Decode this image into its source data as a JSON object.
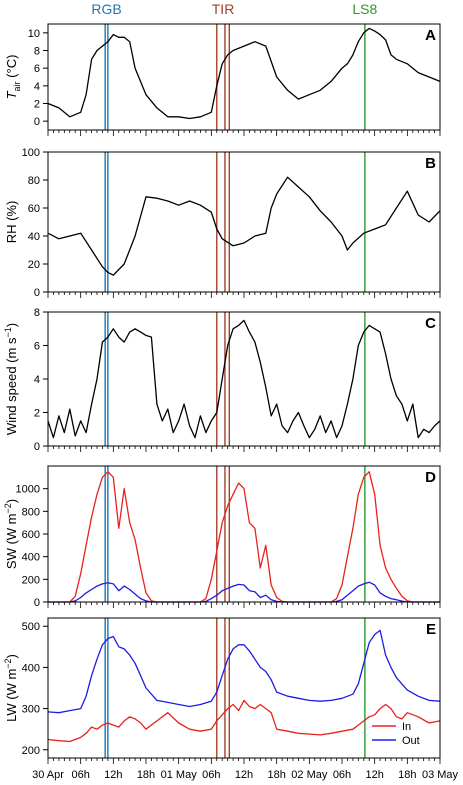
{
  "colors": {
    "rgb": "#1f77b4",
    "tir": "#a0422a",
    "ls8": "#2a9a2a",
    "line": "#000000",
    "in": "#e8221c",
    "out": "#1c1ce8"
  },
  "markers": {
    "rgb": {
      "label": "RGB",
      "x": [
        10.5,
        11.0
      ]
    },
    "tir": {
      "label": "TIR",
      "x": [
        31.0,
        32.5,
        33.3
      ]
    },
    "ls8": {
      "label": "LS8",
      "x": [
        58.2
      ]
    }
  },
  "x_axis": {
    "range": [
      0,
      72
    ],
    "major_ticks": [
      0,
      6,
      12,
      18,
      24,
      30,
      36,
      42,
      48,
      54,
      60,
      66,
      72
    ],
    "tick_labels": [
      "30 Apr",
      "06h",
      "12h",
      "18h",
      "01 May",
      "06h",
      "12h",
      "18h",
      "02 May",
      "06h",
      "12h",
      "18h",
      "03 May"
    ]
  },
  "chart_data": [
    {
      "type": "line",
      "panel": "A",
      "ylabel_main": "T",
      "ylabel_sub": "air",
      "ylabel_unit": " (°C)",
      "ylim": [
        -1,
        11
      ],
      "yticks": [
        0,
        2,
        4,
        6,
        8,
        10
      ],
      "x": [
        0,
        2,
        4,
        6,
        7,
        8,
        9,
        10,
        11,
        12,
        13,
        14,
        15,
        16,
        18,
        20,
        22,
        24,
        26,
        28,
        30,
        31,
        32,
        33,
        34,
        36,
        38,
        40,
        42,
        44,
        46,
        48,
        50,
        52,
        54,
        55,
        56,
        57,
        58,
        59,
        60,
        61,
        62,
        63,
        64,
        66,
        68,
        70,
        72
      ],
      "series": [
        {
          "values": [
            2,
            1.5,
            0.5,
            1,
            3,
            7,
            8,
            8.5,
            9,
            9.8,
            9.5,
            9.5,
            9,
            6,
            3,
            1.5,
            0.5,
            0.5,
            0.3,
            0.5,
            1,
            4,
            6.5,
            7.5,
            8,
            8.5,
            9,
            8.5,
            5,
            3.5,
            2.5,
            3,
            3.5,
            4.5,
            6,
            6.5,
            7.5,
            9,
            10,
            10.5,
            10.2,
            9.8,
            9.2,
            7.5,
            7,
            6.5,
            5.5,
            5,
            4.5
          ]
        }
      ]
    },
    {
      "type": "line",
      "panel": "B",
      "ylabel_main": "RH (%)",
      "ylim": [
        0,
        100
      ],
      "yticks": [
        0,
        20,
        40,
        60,
        80,
        100
      ],
      "x": [
        0,
        2,
        4,
        6,
        8,
        10,
        11,
        12,
        14,
        16,
        18,
        20,
        22,
        24,
        26,
        28,
        30,
        31,
        32,
        34,
        36,
        38,
        40,
        41,
        42,
        44,
        46,
        48,
        50,
        52,
        54,
        55,
        56,
        58,
        60,
        62,
        64,
        66,
        68,
        70,
        72
      ],
      "series": [
        {
          "values": [
            42,
            38,
            40,
            42,
            30,
            18,
            14,
            12,
            20,
            40,
            68,
            67,
            65,
            62,
            65,
            62,
            57,
            45,
            38,
            33,
            35,
            40,
            42,
            60,
            70,
            82,
            75,
            68,
            58,
            50,
            40,
            30,
            35,
            42,
            45,
            48,
            60,
            72,
            55,
            50,
            58
          ]
        }
      ]
    },
    {
      "type": "line",
      "panel": "C",
      "ylabel_main": "Wind speed (m s",
      "ylabel_sup": "−1",
      "ylabel_end": ")",
      "ylim": [
        0,
        8
      ],
      "yticks": [
        0,
        2,
        4,
        6,
        8
      ],
      "x": [
        0,
        1,
        2,
        3,
        4,
        5,
        6,
        7,
        8,
        9,
        10,
        11,
        12,
        13,
        14,
        15,
        16,
        17,
        18,
        19,
        20,
        21,
        22,
        23,
        24,
        25,
        26,
        27,
        28,
        29,
        30,
        31,
        32,
        33,
        34,
        35,
        36,
        37,
        38,
        39,
        40,
        41,
        42,
        43,
        44,
        45,
        46,
        47,
        48,
        49,
        50,
        51,
        52,
        53,
        54,
        55,
        56,
        57,
        58,
        59,
        60,
        61,
        62,
        63,
        64,
        65,
        66,
        67,
        68,
        69,
        70,
        71,
        72
      ],
      "series": [
        {
          "values": [
            1.5,
            0.5,
            1.8,
            0.8,
            2.2,
            0.6,
            1.5,
            0.8,
            2.5,
            4,
            6.2,
            6.5,
            7,
            6.5,
            6.2,
            6.8,
            7,
            6.8,
            6.6,
            6.5,
            2.5,
            1.5,
            2.2,
            0.8,
            1.5,
            2.5,
            1.2,
            0.5,
            1.8,
            0.8,
            1.5,
            2,
            4,
            6,
            7,
            7.2,
            7.5,
            6.8,
            6.2,
            5,
            3.5,
            1.8,
            2.5,
            1.2,
            0.8,
            1.5,
            2,
            1.2,
            0.5,
            1,
            1.8,
            0.8,
            1.5,
            0.5,
            1.2,
            2.5,
            4,
            6,
            6.8,
            7.2,
            7,
            6.8,
            5.5,
            4,
            3,
            2.5,
            1.5,
            2.5,
            0.5,
            1,
            0.8,
            1.2,
            1.5
          ]
        }
      ]
    },
    {
      "type": "line",
      "panel": "D",
      "ylabel_main": "SW (W m",
      "ylabel_sup": "−2",
      "ylabel_end": ")",
      "ylim": [
        0,
        1200
      ],
      "yticks": [
        0,
        200,
        400,
        600,
        800,
        1000
      ],
      "legend": "none",
      "x": [
        0,
        4,
        5,
        6,
        7,
        8,
        9,
        10,
        11,
        12,
        13,
        14,
        15,
        16,
        17,
        18,
        19,
        20,
        24,
        28,
        29,
        30,
        31,
        32,
        33,
        34,
        35,
        36,
        37,
        38,
        39,
        40,
        41,
        42,
        43,
        44,
        48,
        52,
        53,
        54,
        55,
        56,
        57,
        58,
        59,
        60,
        61,
        62,
        63,
        64,
        65,
        66,
        67,
        72
      ],
      "series": [
        {
          "name": "In",
          "values": [
            0,
            0,
            50,
            250,
            500,
            750,
            950,
            1100,
            1150,
            1100,
            650,
            1000,
            700,
            550,
            300,
            80,
            10,
            0,
            0,
            0,
            30,
            200,
            450,
            700,
            850,
            950,
            1050,
            1000,
            700,
            650,
            300,
            500,
            150,
            40,
            5,
            0,
            0,
            0,
            30,
            150,
            400,
            650,
            950,
            1100,
            1150,
            950,
            500,
            300,
            200,
            120,
            50,
            10,
            0,
            0
          ]
        },
        {
          "name": "Out",
          "values": [
            0,
            0,
            10,
            40,
            80,
            110,
            140,
            160,
            170,
            160,
            100,
            140,
            110,
            70,
            30,
            10,
            0,
            0,
            0,
            0,
            5,
            30,
            60,
            100,
            120,
            140,
            155,
            150,
            100,
            90,
            40,
            60,
            20,
            5,
            0,
            0,
            0,
            0,
            5,
            20,
            60,
            100,
            140,
            160,
            175,
            150,
            80,
            50,
            30,
            20,
            8,
            0,
            0,
            0
          ]
        }
      ]
    },
    {
      "type": "line",
      "panel": "E",
      "ylabel_main": "LW (W m",
      "ylabel_sup": "−2",
      "ylabel_end": ")",
      "ylim": [
        180,
        520
      ],
      "yticks": [
        200,
        300,
        400,
        500
      ],
      "legend": "bottom-right",
      "x": [
        0,
        2,
        4,
        6,
        7,
        8,
        9,
        10,
        11,
        12,
        13,
        14,
        15,
        16,
        17,
        18,
        20,
        22,
        24,
        26,
        28,
        30,
        31,
        32,
        33,
        34,
        35,
        36,
        37,
        38,
        39,
        40,
        41,
        42,
        44,
        46,
        48,
        50,
        52,
        54,
        56,
        57,
        58,
        59,
        60,
        61,
        62,
        63,
        64,
        65,
        66,
        68,
        70,
        72
      ],
      "series": [
        {
          "name": "In",
          "values": [
            225,
            222,
            220,
            230,
            240,
            255,
            250,
            260,
            265,
            260,
            255,
            270,
            280,
            275,
            265,
            250,
            270,
            290,
            265,
            250,
            245,
            250,
            270,
            285,
            300,
            310,
            295,
            320,
            305,
            300,
            310,
            300,
            290,
            250,
            245,
            240,
            238,
            236,
            240,
            245,
            250,
            260,
            270,
            280,
            285,
            300,
            310,
            300,
            280,
            275,
            290,
            280,
            265,
            270
          ]
        },
        {
          "name": "Out",
          "values": [
            292,
            290,
            295,
            300,
            330,
            380,
            420,
            455,
            470,
            475,
            450,
            445,
            430,
            410,
            380,
            350,
            320,
            315,
            310,
            305,
            310,
            318,
            340,
            380,
            420,
            445,
            455,
            455,
            440,
            420,
            400,
            390,
            370,
            340,
            330,
            325,
            320,
            318,
            320,
            325,
            335,
            360,
            410,
            460,
            480,
            490,
            430,
            400,
            375,
            360,
            345,
            330,
            320,
            318
          ]
        }
      ]
    }
  ]
}
